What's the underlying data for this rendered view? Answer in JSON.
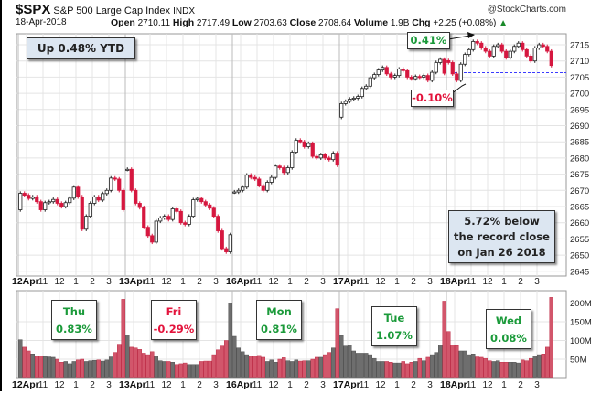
{
  "header": {
    "symbol": "$SPX",
    "name": "S&P 500 Large Cap Index",
    "exchange": "INDX",
    "credit": "@StockCharts.com",
    "date": "18-Apr-2018",
    "open_label": "Open",
    "open": "2710.11",
    "high_label": "High",
    "high": "2717.49",
    "low_label": "Low",
    "low": "2703.63",
    "close_label": "Close",
    "close": "2708.64",
    "volume_label": "Volume",
    "volume": "1.9B",
    "chg_label": "Chg",
    "chg": "+2.25 (+0.08%)",
    "chg_arrow": "▲"
  },
  "annotations": {
    "ytd": "Up 0.48% YTD",
    "intraday_high": "0.41%",
    "intraday_low": "-0.10%",
    "record_line1": "5.72% below",
    "record_line2": "the record close",
    "record_line3": "on Jan 26 2018"
  },
  "colors": {
    "up_candle": "#ffffff",
    "down_candle": "#d6173f",
    "up_volume": "#6e6e6e",
    "down_volume": "#d2566b",
    "prev_close_line": "#3b3bff",
    "positive_text": "#1b9a3a",
    "negative_text": "#e3143c"
  },
  "chart_data": [
    {
      "type": "candlestick",
      "interval": "15 min",
      "y_axis": "right",
      "ylim": [
        2645,
        2715
      ],
      "yticks": [
        2715,
        2710,
        2705,
        2700,
        2695,
        2690,
        2685,
        2680,
        2675,
        2670,
        2665,
        2660,
        2655,
        2650,
        2645
      ],
      "grid": true,
      "xtick_labels": [
        "11",
        "12",
        "1",
        "2",
        "3"
      ],
      "previous_close_line": 2706.39,
      "days": [
        {
          "label": "12Apr",
          "weekday": "Thu",
          "change": "0.83%",
          "open": 2664.0,
          "closes": [
            2669.1,
            2668.5,
            2667.5,
            2668.0,
            2666.5,
            2664.0,
            2666.2,
            2666.5,
            2667.2,
            2666.0,
            2665.0,
            2666.2,
            2667.6,
            2671.0,
            2668.0,
            2658.0,
            2662.0,
            2666.0,
            2668.0,
            2667.0,
            2669.0,
            2670.0,
            2673.8,
            2673.5,
            2670.0,
            2664.0
          ]
        },
        {
          "label": "13Apr",
          "weekday": "Fri",
          "change": "-0.29%",
          "open": 2676.5,
          "closes": [
            2676.5,
            2670.0,
            2666.0,
            2664.7,
            2658.6,
            2656.0,
            2654.0,
            2660.5,
            2661.5,
            2662.0,
            2661.0,
            2664.3,
            2663.5,
            2660.0,
            2659.5,
            2662.0,
            2667.1,
            2667.5,
            2666.5,
            2665.5,
            2664.5,
            2662.0,
            2657.5,
            2652.0,
            2651.0,
            2656.3
          ]
        },
        {
          "label": "16Apr",
          "weekday": "Mon",
          "change": "0.81%",
          "open": 2669.5,
          "closes": [
            2669.5,
            2670.0,
            2671.0,
            2674.7,
            2674.0,
            2673.5,
            2671.5,
            2670.0,
            2672.5,
            2674.0,
            2677.5,
            2677.0,
            2675.5,
            2677.0,
            2681.8,
            2685.5,
            2685.0,
            2683.5,
            2684.5,
            2680.5,
            2680.0,
            2681.0,
            2680.0,
            2679.5,
            2681.5,
            2677.8
          ]
        },
        {
          "label": "17Apr",
          "weekday": "Tue",
          "change": "1.07%",
          "open": 2692.6,
          "closes": [
            2696.8,
            2697.5,
            2698.2,
            2698.5,
            2699.0,
            2701.5,
            2702.2,
            2704.8,
            2705.8,
            2707.2,
            2708.0,
            2706.0,
            2705.0,
            2705.5,
            2707.5,
            2707.0,
            2705.0,
            2704.5,
            2705.2,
            2705.0,
            2705.5,
            2704.0,
            2706.5,
            2709.5,
            2710.5,
            2706.2
          ]
        },
        {
          "label": "18Apr",
          "weekday": "Wed",
          "change": "0.08%",
          "open": 2710.1,
          "closes": [
            2709.5,
            2706.0,
            2704.0,
            2709.0,
            2712.0,
            2713.5,
            2716.0,
            2715.5,
            2714.0,
            2713.0,
            2711.5,
            2714.5,
            2715.0,
            2713.0,
            2711.0,
            2713.0,
            2714.5,
            2715.5,
            2713.5,
            2711.5,
            2710.0,
            2714.0,
            2715.0,
            2714.5,
            2713.0,
            2708.6
          ]
        }
      ]
    },
    {
      "type": "bar",
      "series_name": "Volume",
      "unit": "M",
      "ylim": [
        0,
        220
      ],
      "yticks": [
        "200M",
        "150M",
        "100M",
        "50M"
      ],
      "ytick_values": [
        200,
        150,
        100,
        50
      ],
      "values": [
        [
          102,
          82,
          72,
          64,
          59,
          59,
          57,
          56,
          55,
          50,
          42,
          44,
          38,
          44,
          48,
          50,
          44,
          46,
          47,
          48,
          45,
          48,
          56,
          68,
          90,
          210
        ],
        [
          114,
          82,
          80,
          76,
          66,
          62,
          70,
          58,
          46,
          44,
          44,
          42,
          36,
          38,
          40,
          36,
          36,
          36,
          44,
          45,
          45,
          62,
          75,
          85,
          100,
          200
        ],
        [
          111,
          80,
          70,
          62,
          58,
          58,
          60,
          55,
          44,
          48,
          42,
          50,
          54,
          46,
          44,
          48,
          45,
          46,
          46,
          50,
          55,
          55,
          62,
          68,
          80,
          185
        ],
        [
          113,
          85,
          88,
          72,
          66,
          66,
          66,
          62,
          52,
          44,
          44,
          44,
          42,
          40,
          40,
          44,
          38,
          42,
          44,
          52,
          46,
          55,
          62,
          68,
          88,
          205
        ],
        [
          124,
          88,
          86,
          72,
          72,
          62,
          64,
          56,
          55,
          52,
          46,
          44,
          46,
          42,
          42,
          42,
          42,
          40,
          48,
          46,
          52,
          58,
          62,
          64,
          82,
          215
        ]
      ]
    }
  ]
}
